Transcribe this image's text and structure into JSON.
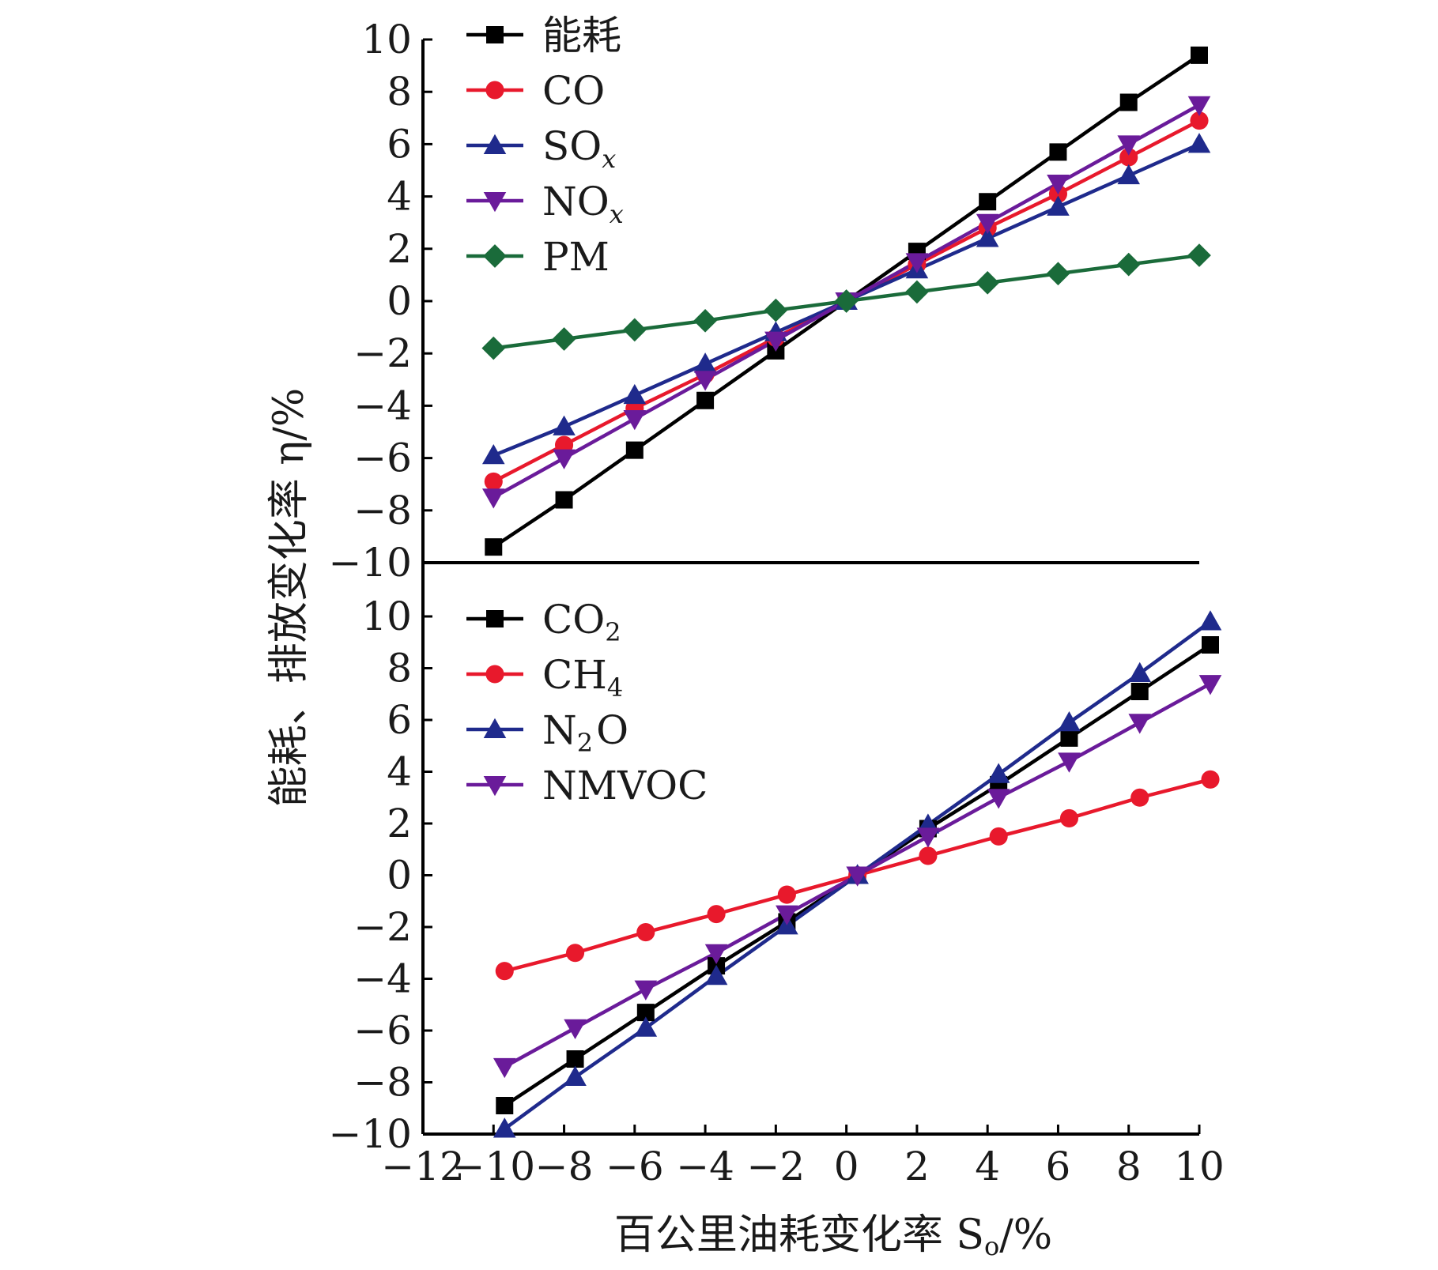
{
  "chart_data": [
    {
      "type": "line",
      "panel": "top",
      "x": [
        -10,
        -8,
        -6,
        -4,
        -2,
        0,
        2,
        4,
        6,
        8,
        10
      ],
      "ylim": [
        -10,
        10
      ],
      "yticks": [
        10,
        8,
        6,
        4,
        2,
        0,
        -2,
        -4,
        -6,
        -8,
        -10
      ],
      "legend_position": "top-left",
      "series": [
        {
          "name": "能耗",
          "marker": "square",
          "color": "#000000",
          "values": [
            -9.4,
            -7.6,
            -5.7,
            -3.8,
            -1.9,
            0,
            1.9,
            3.8,
            5.7,
            7.6,
            9.4
          ]
        },
        {
          "name": "CO",
          "marker": "circle",
          "color": "#e8192c",
          "values": [
            -6.9,
            -5.5,
            -4.1,
            -2.8,
            -1.4,
            0,
            1.4,
            2.8,
            4.1,
            5.5,
            6.9
          ]
        },
        {
          "name": "SO",
          "name_sub": "x",
          "marker": "triangle-up",
          "color": "#1f2a8c",
          "values": [
            -5.9,
            -4.8,
            -3.6,
            -2.4,
            -1.2,
            0,
            1.2,
            2.4,
            3.6,
            4.8,
            6.0
          ]
        },
        {
          "name": "NO",
          "name_sub": "x",
          "marker": "triangle-down",
          "color": "#6a1b9a",
          "values": [
            -7.5,
            -6.0,
            -4.5,
            -3.0,
            -1.5,
            0,
            1.5,
            3.0,
            4.5,
            6.0,
            7.5
          ]
        },
        {
          "name": "PM",
          "marker": "diamond",
          "color": "#1a6b3a",
          "values": [
            -1.8,
            -1.45,
            -1.1,
            -0.75,
            -0.35,
            0,
            0.35,
            0.7,
            1.05,
            1.4,
            1.75
          ]
        }
      ]
    },
    {
      "type": "line",
      "panel": "bottom",
      "x": [
        -10,
        -8,
        -6,
        -4,
        -2,
        0,
        2,
        4,
        6,
        8,
        10
      ],
      "ylim": [
        -10,
        10
      ],
      "yticks": [
        10,
        8,
        6,
        4,
        2,
        0,
        -2,
        -4,
        -6,
        -8,
        -10
      ],
      "legend_position": "top-left",
      "series": [
        {
          "name": "CO",
          "name_sub": "2",
          "marker": "square",
          "color": "#000000",
          "values": [
            -8.9,
            -7.1,
            -5.3,
            -3.5,
            -1.8,
            0,
            1.8,
            3.5,
            5.3,
            7.1,
            8.9
          ]
        },
        {
          "name": "CH",
          "name_sub": "4",
          "marker": "circle",
          "color": "#e8192c",
          "values": [
            -3.7,
            -3.0,
            -2.2,
            -1.5,
            -0.75,
            0,
            0.75,
            1.5,
            2.2,
            3.0,
            3.7
          ]
        },
        {
          "name": "N",
          "name_sub": "2",
          "name_suffix": "O",
          "marker": "triangle-up",
          "color": "#1f2a8c",
          "values": [
            -9.8,
            -7.8,
            -5.9,
            -3.9,
            -1.95,
            0,
            1.95,
            3.9,
            5.9,
            7.8,
            9.8
          ]
        },
        {
          "name": "NMVOC",
          "marker": "triangle-down",
          "color": "#6a1b9a",
          "values": [
            -7.4,
            -5.9,
            -4.4,
            -3.0,
            -1.5,
            0,
            1.5,
            3.0,
            4.4,
            5.9,
            7.4
          ]
        }
      ]
    }
  ],
  "axes": {
    "xlabel": "百公里油耗变化率 S",
    "xlabel_sub": "o",
    "xlabel_unit": "/%",
    "ylabel": "能耗、排放变化率 η/%",
    "xlim": [
      -12,
      10
    ],
    "xticks": [
      -12,
      -10,
      -8,
      -6,
      -4,
      -2,
      0,
      2,
      4,
      6,
      8,
      10
    ],
    "xtick_labels": [
      "−12",
      "−10",
      "−8",
      "−6",
      "−4",
      "−2",
      "0",
      "2",
      "4",
      "6",
      "8",
      "10"
    ]
  }
}
